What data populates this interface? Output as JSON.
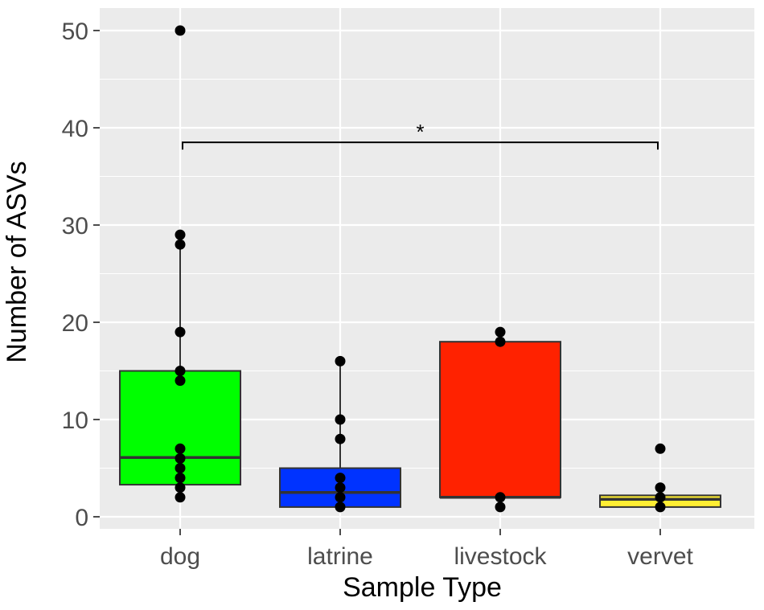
{
  "chart_data": {
    "type": "box",
    "title": "",
    "xlabel": "Sample Type",
    "ylabel": "Number of ASVs",
    "ylim": [
      -2,
      52
    ],
    "yticks": [
      0,
      10,
      20,
      30,
      40,
      50
    ],
    "categories": [
      "dog",
      "latrine",
      "livestock",
      "vervet"
    ],
    "boxes": [
      {
        "category": "dog",
        "q1": 3.3,
        "median": 6.1,
        "q3": 15,
        "whisker_low": 2,
        "whisker_high": 29
      },
      {
        "category": "latrine",
        "q1": 1,
        "median": 2.5,
        "q3": 5,
        "whisker_low": 1,
        "whisker_high": 16
      },
      {
        "category": "livestock",
        "q1": 2,
        "median": 2,
        "q3": 18,
        "whisker_low": 1,
        "whisker_high": 19
      },
      {
        "category": "vervet",
        "q1": 1,
        "median": 1.8,
        "q3": 2.2,
        "whisker_low": 1,
        "whisker_high": 2.2
      }
    ],
    "points": [
      {
        "category": "dog",
        "values": [
          50,
          29,
          28,
          19,
          15,
          14,
          7,
          6,
          5,
          4,
          3,
          2
        ]
      },
      {
        "category": "latrine",
        "values": [
          16,
          10,
          8,
          4,
          3,
          2,
          1
        ]
      },
      {
        "category": "livestock",
        "values": [
          19,
          18,
          2,
          1
        ]
      },
      {
        "category": "vervet",
        "values": [
          7,
          3,
          2,
          1
        ]
      }
    ],
    "significance": {
      "from": "dog",
      "to": "vervet",
      "y": 38.5,
      "label": "*"
    },
    "grid": true,
    "legend": "none"
  },
  "colors": {
    "panel_background": "#ebebeb",
    "grid": "#ffffff",
    "box_fills": [
      "#00ff00",
      "#0033ff",
      "#ff2200",
      "#ffee33"
    ],
    "box_outline": "#333333",
    "point": "#000000"
  }
}
